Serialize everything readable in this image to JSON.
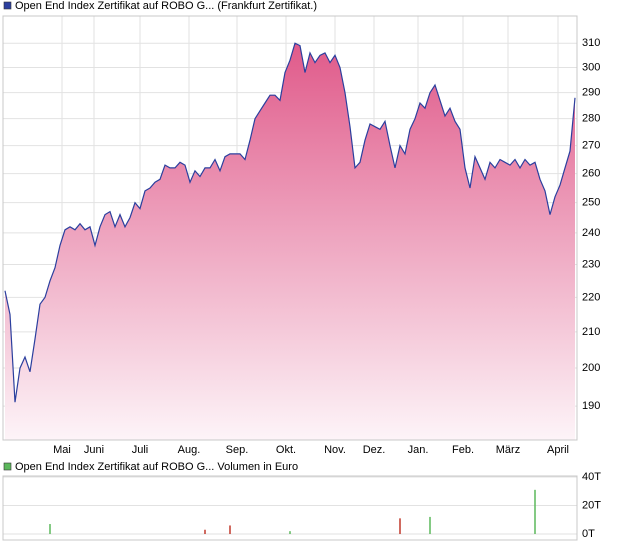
{
  "chart_data": [
    {
      "type": "area",
      "series": [
        {
          "name": "Open End Index Zertifikat auf ROBO G... (Frankfurt Zertifikat.)",
          "color": "#2b3f9e",
          "values": [
            222,
            215,
            191,
            200,
            203,
            199,
            208,
            218,
            220,
            225,
            229,
            236,
            241,
            242,
            241,
            243,
            241,
            242,
            236,
            242,
            246,
            247,
            242,
            246,
            242,
            245,
            250,
            248,
            254,
            255,
            257,
            258,
            263,
            262,
            262,
            264,
            263,
            257,
            261,
            259,
            262,
            262,
            265,
            261,
            266,
            267,
            267,
            267,
            265,
            272,
            280,
            283,
            286,
            289,
            289,
            287,
            298,
            303,
            310,
            309,
            298,
            306,
            302,
            305,
            306,
            302,
            305,
            300,
            290,
            277,
            262,
            264,
            272,
            278,
            277,
            276,
            279,
            270,
            262,
            270,
            267,
            276,
            280,
            286,
            284,
            290,
            293,
            287,
            281,
            284,
            279,
            276,
            262,
            255,
            266,
            262,
            258,
            264,
            262,
            265,
            264,
            263,
            265,
            262,
            265,
            263,
            264,
            258,
            254,
            246,
            252,
            256,
            262,
            268,
            288
          ]
        }
      ],
      "x": [
        0,
        1,
        2,
        3,
        4,
        5,
        6,
        7,
        8,
        9,
        10,
        11,
        12,
        13,
        14,
        15,
        16,
        17,
        18,
        19,
        20,
        21,
        22,
        23,
        24,
        25,
        26,
        27,
        28,
        29,
        30,
        31,
        32,
        33,
        34,
        35,
        36,
        37,
        38,
        39,
        40,
        41,
        42,
        43,
        44,
        45,
        46,
        47,
        48,
        49,
        50,
        51,
        52,
        53,
        54,
        55,
        56,
        57,
        58,
        59,
        60,
        61,
        62,
        63,
        64,
        65,
        66,
        67,
        68,
        69,
        70,
        71,
        72,
        73,
        74,
        75,
        76,
        77,
        78,
        79,
        80,
        81,
        82,
        83,
        84,
        85,
        86,
        87,
        88,
        89,
        90,
        91,
        92,
        93,
        94,
        95,
        96,
        97,
        98,
        99,
        100,
        101,
        102,
        103,
        104,
        105,
        106,
        107,
        108,
        109,
        110,
        111,
        112,
        113,
        114
      ],
      "xlim": [
        -0.4,
        114.4
      ],
      "xticks": [
        {
          "value": 11.4,
          "label": "Mai"
        },
        {
          "value": 17.8,
          "label": "Juni"
        },
        {
          "value": 27,
          "label": "Juli"
        },
        {
          "value": 36.8,
          "label": "Aug."
        },
        {
          "value": 46.4,
          "label": "Sep."
        },
        {
          "value": 56.2,
          "label": "Okt."
        },
        {
          "value": 66,
          "label": "Nov."
        },
        {
          "value": 73.8,
          "label": "Dez."
        },
        {
          "value": 82.6,
          "label": "Jan."
        },
        {
          "value": 91.6,
          "label": "Feb."
        },
        {
          "value": 100.6,
          "label": "März"
        },
        {
          "value": 110.6,
          "label": "April"
        }
      ],
      "ylim": [
        181.5,
        321.6
      ],
      "yticks": [
        190,
        200,
        210,
        220,
        230,
        240,
        250,
        260,
        270,
        280,
        290,
        300,
        310
      ],
      "log_scale": true,
      "grid": true
    },
    {
      "type": "bar",
      "series": [
        {
          "name": "Open End Index Zertifikat auf ROBO G... Volumen in Euro",
          "color": "#5cb85c",
          "values": [
            7,
            3,
            6,
            2,
            11,
            12,
            31
          ],
          "colors": [
            "#5cb85c",
            "#c0392b",
            "#c0392b",
            "#5cb85c",
            "#c0392b",
            "#5cb85c",
            "#5cb85c"
          ]
        }
      ],
      "x": [
        9,
        40,
        45,
        57,
        79,
        85,
        106
      ],
      "xlim": [
        -0.4,
        114.4
      ],
      "ylim": [
        -4.2,
        40.7
      ],
      "yticks": [
        {
          "value": 0,
          "label": "0T"
        },
        {
          "value": 20,
          "label": "20T"
        },
        {
          "value": 40,
          "label": "40T"
        }
      ],
      "grid": true
    }
  ]
}
